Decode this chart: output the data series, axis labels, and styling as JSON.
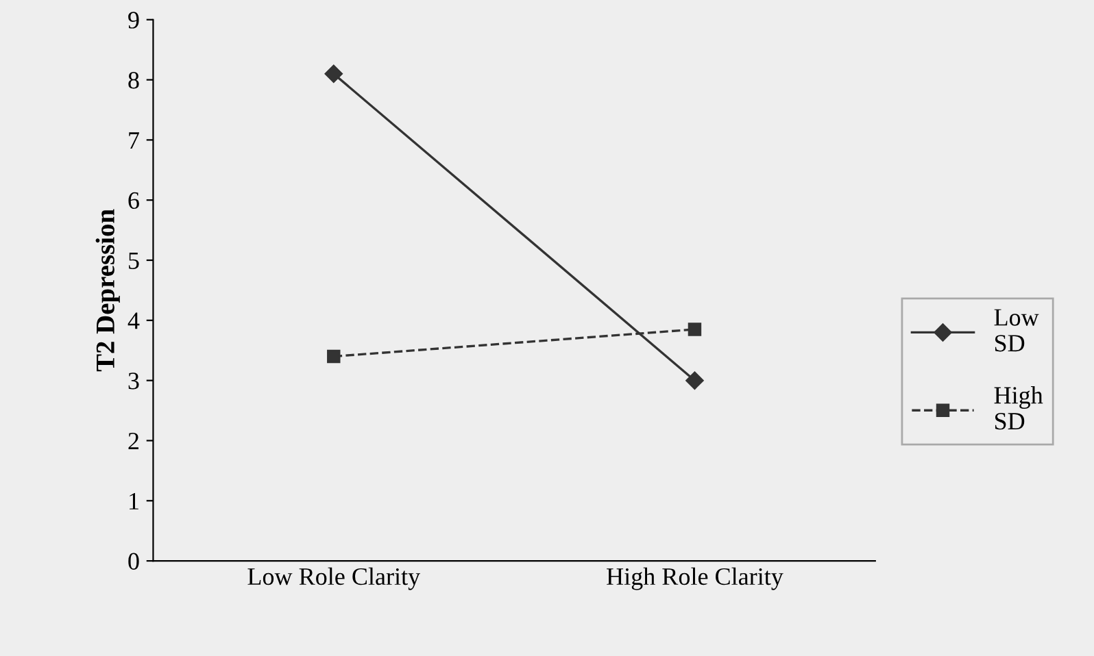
{
  "chart_data": {
    "type": "line",
    "ylabel": "T2 Depression",
    "categories": [
      "Low Role Clarity",
      "High Role Clarity"
    ],
    "series": [
      {
        "name": "Low SD",
        "color": "#333333",
        "values": [
          8.1,
          3.0
        ],
        "marker": "diamond",
        "line_style": "solid"
      },
      {
        "name": "High SD",
        "color": "#333333",
        "values": [
          3.4,
          3.85
        ],
        "marker": "square",
        "line_style": "dashed"
      }
    ],
    "ylim": [
      0,
      9
    ],
    "yticks": [
      0,
      1,
      2,
      3,
      4,
      5,
      6,
      7,
      8,
      9
    ],
    "grid": false,
    "legend": "right"
  }
}
